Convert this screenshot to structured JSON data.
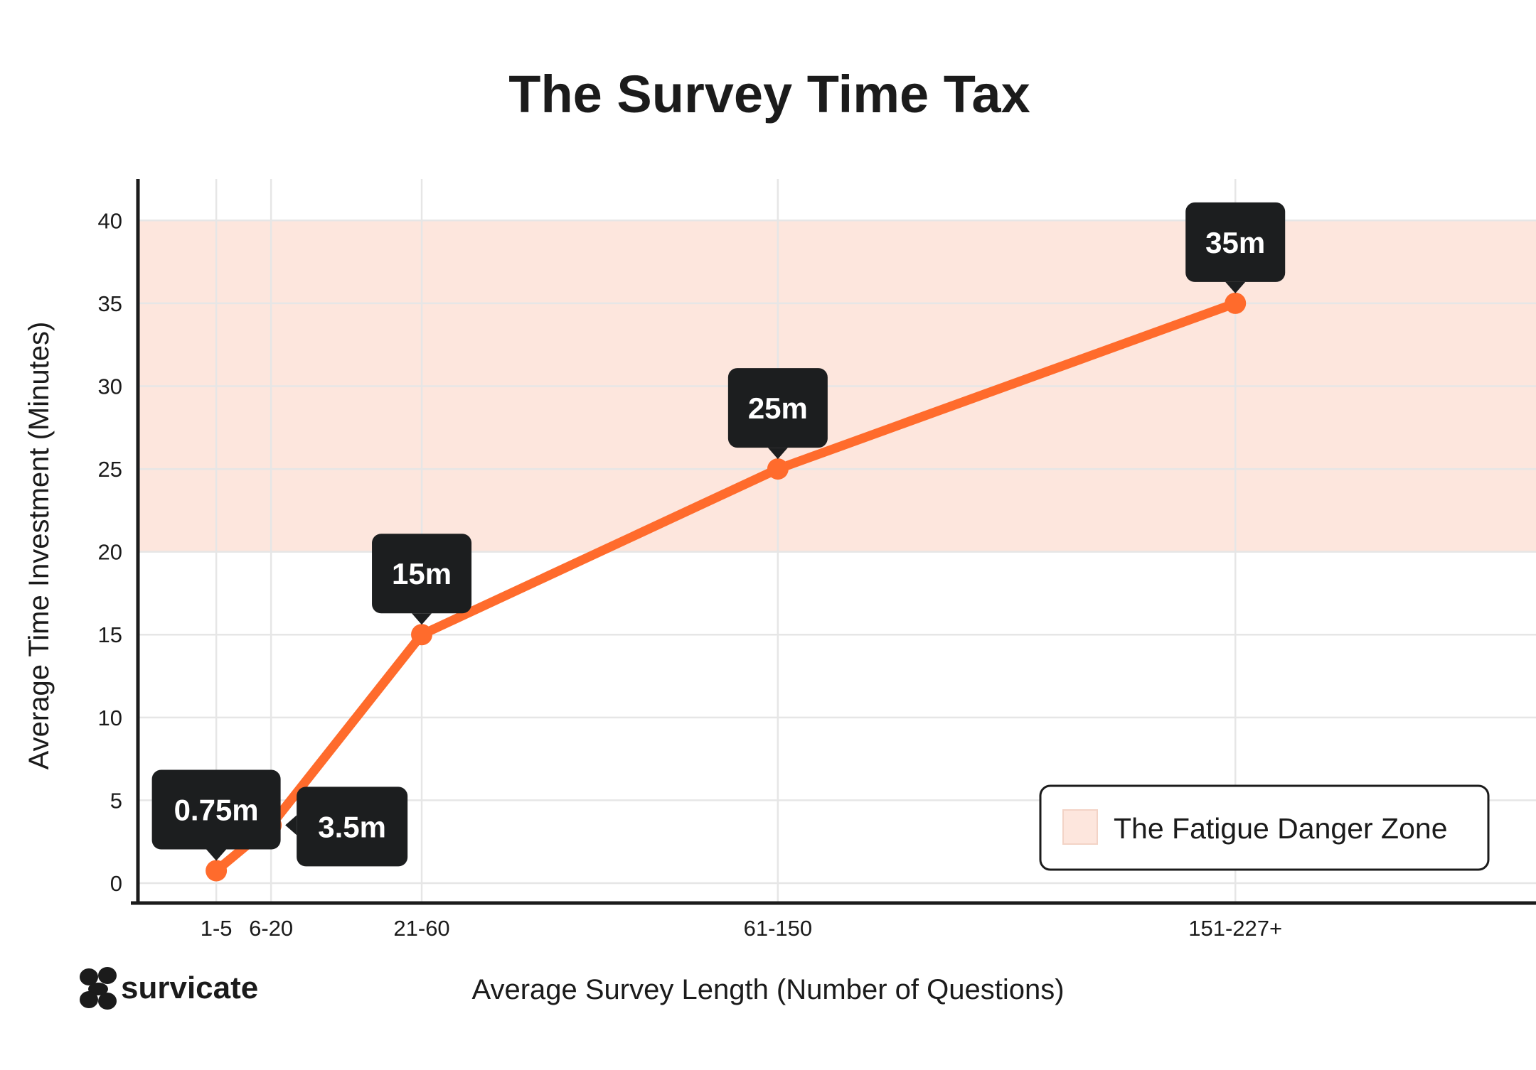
{
  "brand": {
    "logo_text": "survicate"
  },
  "chart_data": {
    "type": "line",
    "title": "The Survey Time Tax",
    "xlabel": "Average Survey Length (Number of Questions)",
    "ylabel": "Average Time Investment (Minutes)",
    "x_axis": {
      "scale": "linear",
      "range": [
        0,
        227
      ]
    },
    "ylim": [
      -1.2,
      42.5
    ],
    "yticks": [
      0,
      5,
      10,
      15,
      20,
      25,
      30,
      35,
      40
    ],
    "grid": true,
    "colors": {
      "line": "#ff6b2c",
      "zone": "#fde6dd",
      "label_bg": "#1c1e1f"
    },
    "points": [
      {
        "x": 3,
        "category": "1-5",
        "y": 0.75,
        "label": "0.75m",
        "label_side": "top"
      },
      {
        "x": 13,
        "category": "6-20",
        "y": 3.5,
        "label": "3.5m",
        "label_side": "right"
      },
      {
        "x": 40.5,
        "category": "21-60",
        "y": 15,
        "label": "15m",
        "label_side": "top"
      },
      {
        "x": 105.5,
        "category": "61-150",
        "y": 25,
        "label": "25m",
        "label_side": "top"
      },
      {
        "x": 189,
        "category": "151-227+",
        "y": 35,
        "label": "35m",
        "label_side": "top"
      }
    ],
    "shaded_region": {
      "y_from": 20,
      "y_to": 40,
      "name": "The Fatigue Danger Zone"
    },
    "legend": {
      "position": "bottom-right",
      "entries": [
        "The Fatigue Danger Zone"
      ]
    }
  }
}
